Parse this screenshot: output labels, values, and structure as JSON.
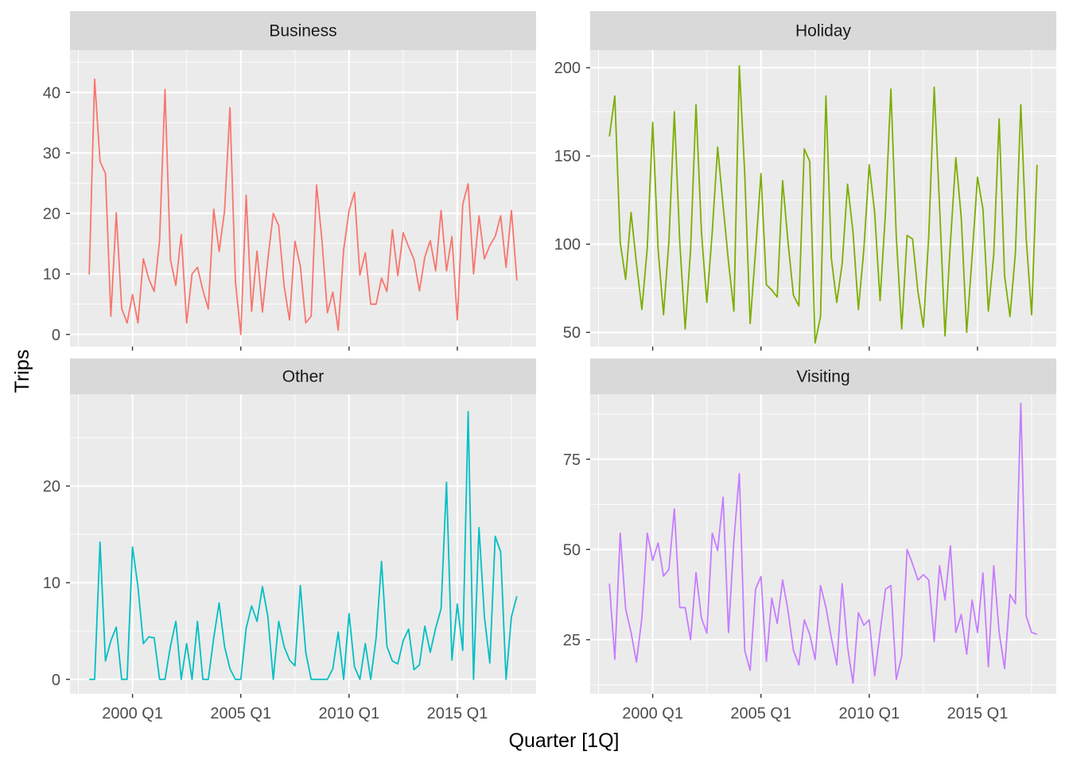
{
  "chart_data": {
    "type": "line",
    "layout": "facet-grid-2x2",
    "xlabel": "Quarter [1Q]",
    "ylabel": "Trips",
    "x_start": "1998 Q1",
    "x_end": "2017 Q4",
    "x_ticks": [
      "2000 Q1",
      "2005 Q1",
      "2010 Q1",
      "2015 Q1"
    ],
    "grid": true,
    "legend": "none",
    "panels": [
      {
        "name": "Business",
        "color": "#F8766D",
        "ylim": [
          -2,
          47
        ],
        "y_ticks": [
          0,
          10,
          20,
          30,
          40
        ],
        "values": [
          9.9,
          42.2,
          28.6,
          26.6,
          3.0,
          20.1,
          4.3,
          1.9,
          6.6,
          1.9,
          12.5,
          9.2,
          7.1,
          15.5,
          40.5,
          12.4,
          8.1,
          16.5,
          1.9,
          10.0,
          11.1,
          7.3,
          4.2,
          20.7,
          13.7,
          20.4,
          37.5,
          8.8,
          0.0,
          23.0,
          3.8,
          13.8,
          3.7,
          12.4,
          20.0,
          18.0,
          8.0,
          2.4,
          15.4,
          11.3,
          1.9,
          3.0,
          24.7,
          15.5,
          3.6,
          7.0,
          0.7,
          14.0,
          20.5,
          23.5,
          9.8,
          13.5,
          5.0,
          5.0,
          9.3,
          7.1,
          17.3,
          9.7,
          16.8,
          14.5,
          12.4,
          7.2,
          12.8,
          15.5,
          10.5,
          20.5,
          10.5,
          16.2,
          2.4,
          21.5,
          24.9,
          10.0,
          19.6,
          12.5,
          14.7,
          16.2,
          19.6,
          11.1,
          20.5,
          8.9
        ]
      },
      {
        "name": "Holiday",
        "color": "#7CAE00",
        "ylim": [
          42,
          210
        ],
        "y_ticks": [
          50,
          100,
          150,
          200
        ],
        "values": [
          161,
          184,
          101,
          80,
          118,
          89,
          63,
          98,
          169,
          97,
          60,
          102,
          175,
          101,
          52,
          97,
          179,
          107,
          67,
          107,
          155,
          122,
          90,
          62,
          201,
          140,
          55,
          96,
          140,
          77,
          74,
          70,
          136,
          101,
          71,
          65,
          154,
          147,
          44,
          59,
          184,
          92,
          67,
          89,
          134,
          107,
          63,
          97,
          145,
          118,
          68,
          118,
          188,
          104,
          52,
          105,
          103,
          73,
          53,
          105,
          189,
          121,
          48,
          101,
          149,
          115,
          50,
          93,
          138,
          120,
          62,
          94,
          171,
          82,
          59,
          95,
          179,
          103,
          60,
          145
        ]
      },
      {
        "name": "Other",
        "color": "#00BFC4",
        "ylim": [
          -1.5,
          29.5
        ],
        "y_ticks": [
          0,
          10,
          20
        ],
        "values": [
          0,
          0,
          14.2,
          1.9,
          4.0,
          5.4,
          0,
          0,
          13.7,
          9.6,
          3.7,
          4.4,
          4.3,
          0,
          0,
          3.4,
          6.0,
          0,
          3.7,
          0,
          6.0,
          0,
          0,
          4.3,
          7.9,
          3.4,
          1.1,
          0,
          0,
          5.3,
          7.6,
          6.0,
          9.6,
          6.5,
          0,
          6.0,
          3.4,
          2.0,
          1.4,
          9.7,
          2.8,
          0,
          0,
          0,
          0,
          1.1,
          4.9,
          0,
          6.8,
          1.3,
          0,
          3.7,
          0,
          4.3,
          12.2,
          3.4,
          1.9,
          1.6,
          4.0,
          5.2,
          1.0,
          1.5,
          5.5,
          2.8,
          5.3,
          7.3,
          20.4,
          2.0,
          7.8,
          3.0,
          27.7,
          0,
          15.7,
          6.5,
          1.7,
          14.8,
          13.2,
          0,
          6.5,
          8.6
        ]
      },
      {
        "name": "Visiting",
        "color": "#C77CFF",
        "ylim": [
          10,
          93
        ],
        "y_ticks": [
          25,
          50,
          75
        ],
        "values": [
          40.5,
          19.6,
          54.5,
          33.6,
          27.0,
          18.8,
          31.0,
          54.5,
          47.0,
          51.8,
          42.6,
          44.5,
          61.2,
          33.9,
          33.9,
          25.0,
          43.6,
          31.0,
          26.8,
          54.5,
          49.7,
          64.5,
          27.0,
          52.5,
          71.0,
          22.0,
          16.5,
          39.0,
          42.5,
          19.0,
          36.5,
          29.5,
          41.5,
          33.0,
          22.0,
          18.0,
          30.5,
          26.5,
          19.5,
          40.0,
          34.0,
          25.5,
          18.0,
          40.5,
          23.0,
          13.0,
          32.5,
          29.0,
          30.5,
          15.0,
          27.0,
          39.0,
          40.0,
          14.0,
          20.5,
          50.0,
          46.0,
          41.5,
          43.0,
          41.5,
          24.5,
          45.5,
          36.0,
          51.0,
          27.0,
          32.0,
          21.0,
          36.0,
          27.0,
          43.5,
          17.5,
          45.5,
          27.0,
          17.0,
          37.5,
          35.0,
          90.5,
          31.5,
          27.0,
          26.5
        ]
      }
    ]
  }
}
